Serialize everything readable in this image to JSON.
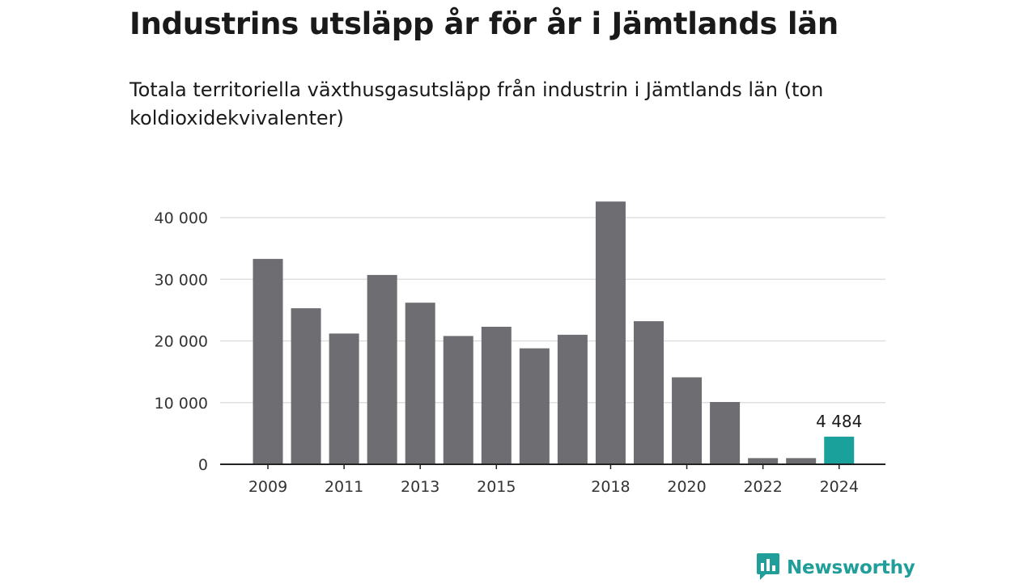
{
  "title": "Industrins utsläpp år för år i Jämtlands län",
  "subtitle": "Totala territoriella växthusgasutsläpp från industrin i Jämtlands län (ton koldioxidekvivalenter)",
  "brand": {
    "name": "Newsworthy",
    "icon": "newsworthy-logo-icon",
    "color": "#1f9e9a"
  },
  "chart_data": {
    "type": "bar",
    "categories": [
      "2009",
      "2010",
      "2011",
      "2012",
      "2013",
      "2014",
      "2015",
      "2016",
      "2017",
      "2018",
      "2019",
      "2020",
      "2021",
      "2022",
      "2023",
      "2024"
    ],
    "values": [
      33300,
      25300,
      21200,
      30700,
      26200,
      20800,
      22300,
      18800,
      21000,
      42600,
      23200,
      14100,
      10100,
      1000,
      1000,
      4484
    ],
    "x_tick_labels": [
      "2009",
      "2011",
      "2013",
      "2015",
      "2018",
      "2020",
      "2022",
      "2024"
    ],
    "y_ticks": [
      0,
      10000,
      20000,
      30000,
      40000
    ],
    "y_tick_labels": [
      "0",
      "10 000",
      "20 000",
      "30 000",
      "40 000"
    ],
    "ylim": [
      0,
      40000
    ],
    "grid": true,
    "highlight": {
      "category": "2024",
      "label": "4 484"
    },
    "colors": {
      "bar": "#6e6d72",
      "highlight": "#1aa19b",
      "grid": "#d9d9d9",
      "axis": "#222222"
    }
  }
}
